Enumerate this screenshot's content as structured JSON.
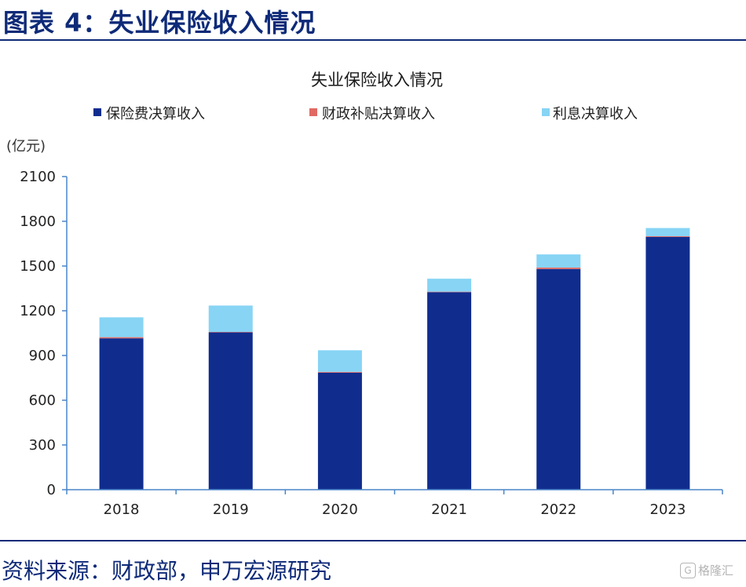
{
  "figure_title": "图表 4：失业保险收入情况",
  "source_note": "资料来源：财政部，申万宏源研究",
  "watermark": {
    "logo_char": "G",
    "text": "格隆汇"
  },
  "colors": {
    "premium": "#102d8e",
    "subsidy": "#e06a63",
    "interest": "#87d4f5",
    "axis": "#4a86c8",
    "title_blue": "#0e2a78"
  },
  "chart_data": {
    "type": "bar",
    "stacked": true,
    "title": "失业保险收入情况",
    "unit_label": "(亿元)",
    "categories": [
      "2018",
      "2019",
      "2020",
      "2021",
      "2022",
      "2023"
    ],
    "series": [
      {
        "name": "保险费决算收入",
        "values": [
          1015,
          1055,
          785,
          1325,
          1480,
          1695
        ]
      },
      {
        "name": "财政补贴决算收入",
        "values": [
          8,
          3,
          5,
          3,
          10,
          5
        ]
      },
      {
        "name": "利息决算收入",
        "values": [
          133,
          177,
          145,
          87,
          88,
          55
        ]
      }
    ],
    "y_ticks": [
      "0",
      "300",
      "600",
      "900",
      "1200",
      "1500",
      "1800",
      "2100"
    ],
    "ylim": [
      0,
      2100
    ],
    "grid": false,
    "legend_position": "top"
  }
}
